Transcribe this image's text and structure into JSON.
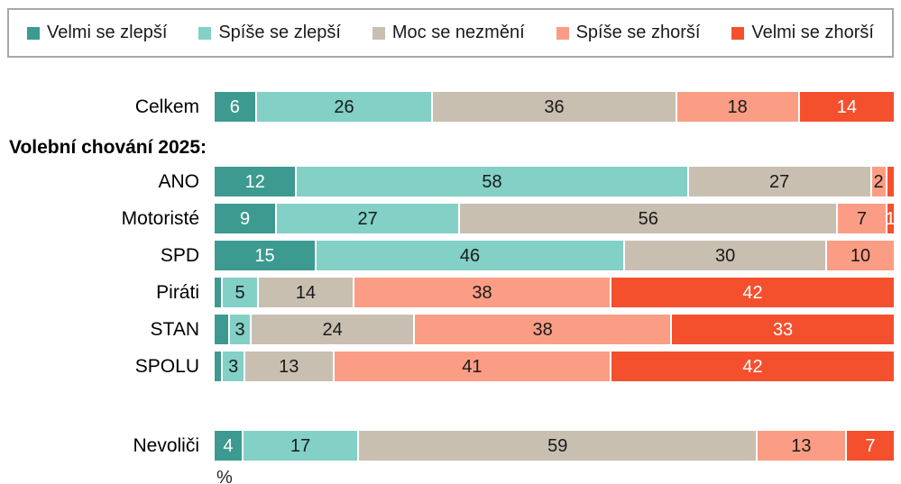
{
  "chart_data": {
    "type": "bar",
    "orientation": "horizontal-stacked",
    "unit": "%",
    "title": "",
    "legend_position": "top",
    "xlim": [
      0,
      100
    ],
    "grid": false,
    "series_names": [
      "Velmi se zlepší",
      "Spíše se zlepší",
      "Moc se nezmění",
      "Spíše se zhorší",
      "Velmi se zhorší"
    ],
    "series_colors": [
      "#3d9a90",
      "#82d0c6",
      "#c8bfb1",
      "#fb9d85",
      "#f4502e"
    ],
    "series_text_colors": [
      "#ffffff",
      "#1a1a1a",
      "#1a1a1a",
      "#1a1a1a",
      "#ffffff"
    ],
    "section_header": "Volební chování 2025:",
    "rows": [
      {
        "category": "Celkem",
        "group": "total",
        "values": [
          6,
          26,
          36,
          18,
          14
        ],
        "labels": [
          "6",
          "26",
          "36",
          "18",
          "14"
        ]
      },
      {
        "category": "ANO",
        "group": "volebni-chovani-2025",
        "values": [
          12,
          58,
          27,
          2,
          1
        ],
        "labels": [
          "12",
          "58",
          "27",
          "2",
          ""
        ]
      },
      {
        "category": "Motoristé",
        "group": "volebni-chovani-2025",
        "values": [
          9,
          27,
          56,
          7,
          1
        ],
        "labels": [
          "9",
          "27",
          "56",
          "7",
          "1"
        ]
      },
      {
        "category": "SPD",
        "group": "volebni-chovani-2025",
        "values": [
          15,
          46,
          30,
          10,
          0
        ],
        "labels": [
          "15",
          "46",
          "30",
          "10",
          ""
        ]
      },
      {
        "category": "Piráti",
        "group": "volebni-chovani-2025",
        "values": [
          1,
          5,
          14,
          38,
          42
        ],
        "labels": [
          "",
          "5",
          "14",
          "38",
          "42"
        ]
      },
      {
        "category": "STAN",
        "group": "volebni-chovani-2025",
        "values": [
          2,
          3,
          24,
          38,
          33
        ],
        "labels": [
          "",
          "3",
          "24",
          "38",
          "33"
        ]
      },
      {
        "category": "SPOLU",
        "group": "volebni-chovani-2025",
        "values": [
          1,
          3,
          13,
          41,
          42
        ],
        "labels": [
          "",
          "3",
          "13",
          "41",
          "42"
        ]
      },
      {
        "category": "Nevoliči",
        "group": "nonvoters",
        "values": [
          4,
          17,
          59,
          13,
          7
        ],
        "labels": [
          "4",
          "17",
          "59",
          "13",
          "7"
        ]
      }
    ],
    "axis_note": "%"
  }
}
